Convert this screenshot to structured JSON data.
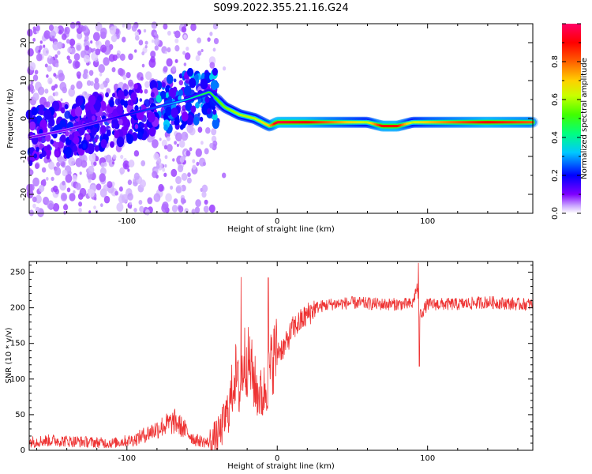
{
  "title": "S099.2022.355.21.16.G24",
  "chart_data": [
    {
      "type": "heatmap",
      "xlabel": "Height of straight line (km)",
      "ylabel": "Frequency (Hz)",
      "xlim": [
        -165,
        170
      ],
      "ylim": [
        -25,
        25
      ],
      "x_ticks": [
        -100,
        0,
        100
      ],
      "y_ticks": [
        -20,
        -10,
        0,
        10,
        20
      ],
      "colorbar": {
        "label": "Normalized spectral amplitude",
        "range": [
          0.0,
          1.0
        ],
        "ticks": [
          0.0,
          0.2,
          0.4,
          0.6,
          0.8
        ],
        "colormap": [
          "#ffffff",
          "#7f00ff",
          "#0000ff",
          "#00c8ff",
          "#00ff80",
          "#80ff00",
          "#ffff00",
          "#ff8000",
          "#ff0000",
          "#ff0066"
        ]
      },
      "ridge": {
        "description_values": "peak frequency track (Hz) vs height (km)",
        "x": [
          -165,
          -140,
          -120,
          -100,
          -80,
          -60,
          -45,
          -35,
          -25,
          -15,
          -5,
          0,
          20,
          60,
          70,
          80,
          90,
          100,
          140,
          170
        ],
        "y": [
          -5,
          -3,
          -1,
          1,
          3,
          5,
          7,
          3,
          1,
          0,
          -2,
          -1,
          -1,
          -1,
          -2,
          -2,
          -1,
          -1,
          -1,
          -1
        ],
        "amplitude": [
          0.1,
          0.1,
          0.15,
          0.2,
          0.25,
          0.35,
          0.5,
          0.55,
          0.6,
          0.6,
          0.7,
          0.95,
          0.9,
          0.6,
          0.9,
          0.9,
          0.6,
          0.7,
          0.9,
          0.8
        ]
      }
    },
    {
      "type": "line",
      "xlabel": "Height of straight line (km)",
      "ylabel": "SNR (10 * v/v)",
      "xlim": [
        -165,
        170
      ],
      "ylim": [
        0,
        265
      ],
      "x_ticks": [
        -100,
        0,
        100
      ],
      "y_ticks": [
        0,
        50,
        100,
        150,
        200,
        250
      ],
      "color": "#ee3333",
      "series": [
        {
          "x": [
            -165,
            -150,
            -130,
            -110,
            -95,
            -85,
            -75,
            -68,
            -62,
            -55,
            -45,
            -38,
            -32,
            -28,
            -25,
            -22,
            -18,
            -14,
            -10,
            -6,
            -3,
            0,
            5,
            10,
            15,
            20,
            25,
            35,
            50,
            70,
            90,
            93,
            95,
            100,
            120,
            140,
            160,
            170
          ],
          "y": [
            12,
            14,
            12,
            10,
            15,
            25,
            35,
            40,
            30,
            15,
            10,
            25,
            60,
            110,
            80,
            130,
            120,
            85,
            75,
            100,
            130,
            140,
            145,
            170,
            180,
            190,
            200,
            205,
            207,
            205,
            205,
            230,
            190,
            205,
            205,
            208,
            205,
            205
          ]
        }
      ],
      "spikes": [
        {
          "x": -24,
          "y": 243
        },
        {
          "x": -6,
          "y": 242
        },
        {
          "x": 94,
          "y": 263
        },
        {
          "x": 94.5,
          "y": 118
        }
      ]
    }
  ]
}
